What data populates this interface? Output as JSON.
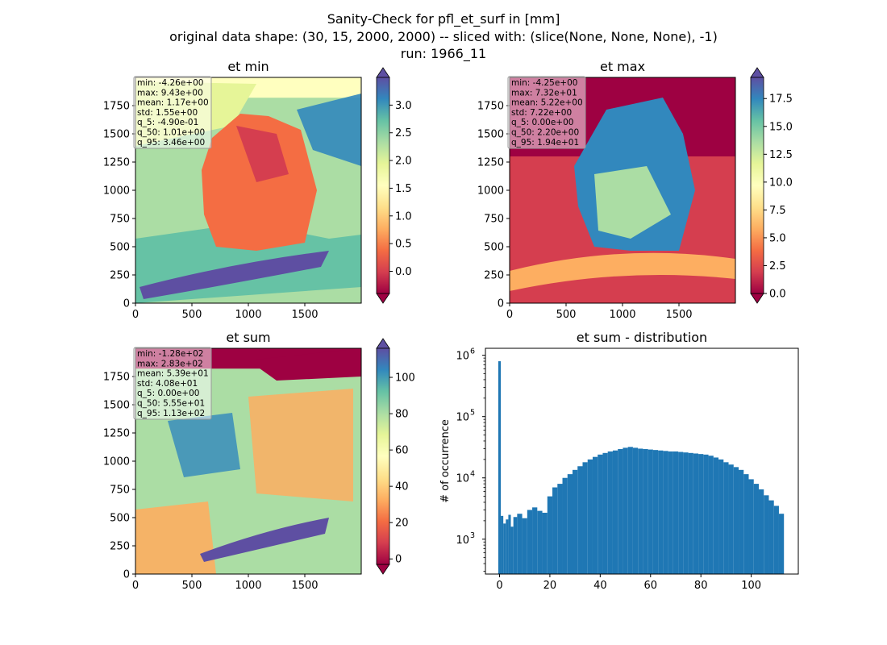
{
  "title_lines": [
    "Sanity-Check for pfl_et_surf in [mm]",
    "original data shape: (30, 15, 2000, 2000) -- sliced with: (slice(None, None, None), -1)",
    "run: 1966_11"
  ],
  "colormap": [
    "#9e0142",
    "#d53e4f",
    "#f46d43",
    "#fdae61",
    "#fee08b",
    "#ffffbf",
    "#e6f598",
    "#abdda4",
    "#66c2a5",
    "#3288bd",
    "#5e4fa2"
  ],
  "chart_data": [
    {
      "type": "heatmap",
      "id": "et_min",
      "title": "et min",
      "xlim": [
        0,
        2000
      ],
      "ylim": [
        0,
        2000
      ],
      "xticks": [
        "0",
        "500",
        "1000",
        "1500"
      ],
      "yticks": [
        "0",
        "250",
        "500",
        "750",
        "1000",
        "1250",
        "1500",
        "1750"
      ],
      "colorbar": {
        "range": [
          -0.4,
          3.5
        ],
        "ticks": [
          3.0,
          2.5,
          2.0,
          1.5,
          1.0,
          0.5,
          0.0
        ],
        "tick_labels": [
          "3.0",
          "2.5",
          "2.0",
          "1.5",
          "1.0",
          "0.5",
          "0.0"
        ]
      },
      "stats": [
        "min: -4.26e+00",
        "max: 9.43e+00",
        "mean: 1.17e+00",
        "std: 1.55e+00",
        "q_5: -4.90e-01",
        "q_50: 1.01e+00",
        "q_95: 3.46e+00"
      ]
    },
    {
      "type": "heatmap",
      "id": "et_max",
      "title": "et max",
      "xlim": [
        0,
        2000
      ],
      "ylim": [
        0,
        2000
      ],
      "xticks": [
        "0",
        "500",
        "1000",
        "1500"
      ],
      "yticks": [
        "0",
        "250",
        "500",
        "750",
        "1000",
        "1250",
        "1500",
        "1750"
      ],
      "colorbar": {
        "range": [
          0,
          19.4
        ],
        "ticks": [
          17.5,
          15.0,
          12.5,
          10.0,
          7.5,
          5.0,
          2.5,
          0.0
        ],
        "tick_labels": [
          "17.5",
          "15.0",
          "12.5",
          "10.0",
          "7.5",
          "5.0",
          "2.5",
          "0.0"
        ]
      },
      "stats": [
        "min: -4.25e+00",
        "max: 7.32e+01",
        "mean: 5.22e+00",
        "std: 7.22e+00",
        "q_5: 0.00e+00",
        "q_50: 2.20e+00",
        "q_95: 1.94e+01"
      ]
    },
    {
      "type": "heatmap",
      "id": "et_sum",
      "title": "et sum",
      "xlim": [
        0,
        2000
      ],
      "ylim": [
        0,
        2000
      ],
      "xticks": [
        "0",
        "500",
        "1000",
        "1500"
      ],
      "yticks": [
        "0",
        "250",
        "500",
        "750",
        "1000",
        "1250",
        "1500",
        "1750"
      ],
      "colorbar": {
        "range": [
          -3,
          116
        ],
        "ticks": [
          100,
          80,
          60,
          40,
          20,
          0
        ],
        "tick_labels": [
          "100",
          "80",
          "60",
          "40",
          "20",
          "0"
        ]
      },
      "stats": [
        "min: -1.28e+02",
        "max: 2.83e+02",
        "mean: 5.39e+01",
        "std: 4.08e+01",
        "q_5: 0.00e+00",
        "q_50: 5.55e+01",
        "q_95: 1.13e+02"
      ]
    },
    {
      "type": "bar",
      "id": "et_sum_distribution",
      "title": "et sum - distribution",
      "ylabel": "# of occurrence",
      "xlabel": "",
      "yscale": "log",
      "xlim": [
        -5.6,
        118.7
      ],
      "ylim": [
        270,
        1300000
      ],
      "xticks": [
        0,
        20,
        40,
        60,
        80,
        100
      ],
      "yticks": [
        {
          "exp": "3",
          "value": 1000
        },
        {
          "exp": "4",
          "value": 10000
        },
        {
          "exp": "5",
          "value": 100000
        },
        {
          "exp": "6",
          "value": 1000000
        }
      ],
      "color": "#1f77b4",
      "bin_centers": [
        0,
        1,
        2,
        3,
        4,
        5,
        6,
        8,
        10,
        12,
        14,
        16,
        18,
        20,
        22,
        24,
        26,
        28,
        30,
        32,
        34,
        36,
        38,
        40,
        42,
        44,
        46,
        48,
        50,
        52,
        54,
        56,
        58,
        60,
        62,
        64,
        66,
        68,
        70,
        72,
        74,
        76,
        78,
        80,
        82,
        84,
        86,
        88,
        90,
        92,
        94,
        96,
        98,
        100,
        102,
        104,
        106,
        108,
        110,
        112
      ],
      "values": [
        800000,
        2400,
        1800,
        2100,
        2500,
        1600,
        2300,
        2600,
        2200,
        3000,
        3300,
        2900,
        2700,
        5000,
        7000,
        8000,
        10000,
        11500,
        13500,
        15500,
        18000,
        20000,
        22000,
        24000,
        25500,
        27000,
        28000,
        29500,
        31000,
        32000,
        31000,
        30000,
        29500,
        29000,
        28500,
        28000,
        27500,
        27000,
        27000,
        26500,
        26000,
        25500,
        25000,
        24500,
        24000,
        23000,
        21500,
        20000,
        18000,
        16500,
        15000,
        13500,
        11500,
        9500,
        8000,
        6500,
        5200,
        4300,
        3500,
        2600
      ]
    }
  ]
}
